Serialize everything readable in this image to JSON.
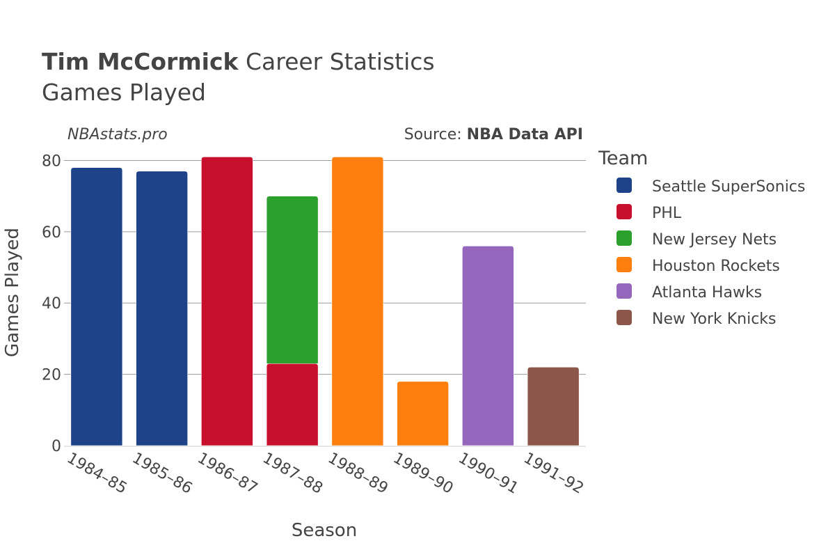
{
  "chart_data": {
    "type": "bar",
    "stacked": true,
    "title_bold": "Tim McCormick",
    "title_rest": " Career Statistics",
    "subtitle": "Games Played",
    "watermark": "NBAstats.pro",
    "source_prefix": "Source: ",
    "source_name": "NBA Data API",
    "xlabel": "Season",
    "ylabel": "Games Played",
    "ylim": [
      0,
      84
    ],
    "yticks": [
      0,
      20,
      40,
      60,
      80
    ],
    "legend_title": "Team",
    "categories": [
      "1984–85",
      "1985–86",
      "1986–87",
      "1987–88",
      "1988–89",
      "1989–90",
      "1990–91",
      "1991–92"
    ],
    "series": [
      {
        "name": "Seattle SuperSonics",
        "color": "#1f4389",
        "values": [
          78,
          77,
          0,
          0,
          0,
          0,
          0,
          0
        ]
      },
      {
        "name": "PHL",
        "color": "#c8102e",
        "values": [
          0,
          0,
          81,
          23,
          0,
          0,
          0,
          0
        ]
      },
      {
        "name": "New Jersey Nets",
        "color": "#2ca02c",
        "values": [
          0,
          0,
          0,
          47,
          0,
          0,
          0,
          0
        ]
      },
      {
        "name": "Houston Rockets",
        "color": "#ff7f0e",
        "values": [
          0,
          0,
          0,
          0,
          81,
          18,
          0,
          0
        ]
      },
      {
        "name": "Atlanta Hawks",
        "color": "#9467bd",
        "values": [
          0,
          0,
          0,
          0,
          0,
          0,
          56,
          0
        ]
      },
      {
        "name": "New York Knicks",
        "color": "#8c564b",
        "values": [
          0,
          0,
          0,
          0,
          0,
          0,
          0,
          22
        ]
      }
    ]
  }
}
